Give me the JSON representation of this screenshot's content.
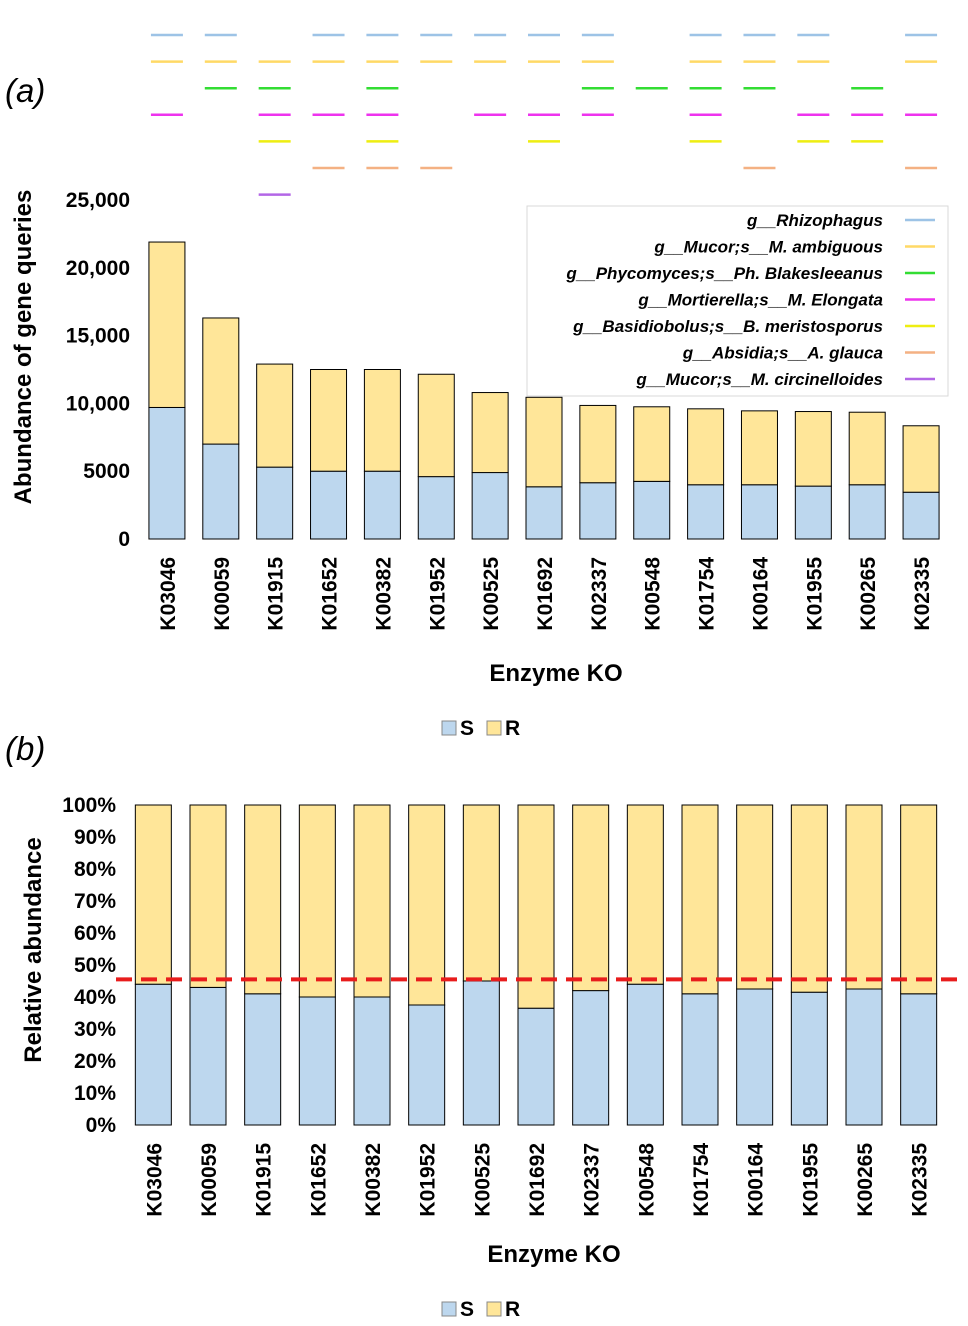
{
  "colors": {
    "S": "#bdd7ee",
    "R": "#ffe699",
    "bar_edge": "#000000",
    "threshold": "#e81c1c"
  },
  "panel_a_label": "(a)",
  "panel_b_label": "(b)",
  "chart_data": [
    {
      "type": "bar",
      "stacked": true,
      "panel": "(a)",
      "title": "",
      "xlabel": "Enzyme KO",
      "ylabel": "Abundance of gene queries",
      "ylim": [
        0,
        25000
      ],
      "yticks": [
        0,
        5000,
        10000,
        15000,
        20000,
        25000
      ],
      "ytick_labels": [
        "0",
        "5000",
        "10,000",
        "15,000",
        "20,000",
        "25,000"
      ],
      "categories": [
        "K03046",
        "K00059",
        "K01915",
        "K01652",
        "K00382",
        "K01952",
        "K00525",
        "K01692",
        "K02337",
        "K00548",
        "K01754",
        "K00164",
        "K01955",
        "K00265",
        "K02335"
      ],
      "series": [
        {
          "name": "S",
          "values": [
            9700,
            7000,
            5300,
            5000,
            5000,
            4600,
            4900,
            3850,
            4150,
            4250,
            4000,
            4000,
            3900,
            4000,
            3450
          ]
        },
        {
          "name": "R",
          "values": [
            12200,
            9300,
            7600,
            7500,
            7500,
            7550,
            5900,
            6600,
            5700,
            5500,
            5600,
            5450,
            5500,
            5350,
            4900
          ]
        }
      ],
      "legend": {
        "placement": "bottom",
        "entries": [
          "S",
          "R"
        ]
      },
      "taxa_legend": [
        {
          "label": "g__Rhizophagus",
          "color": "#9dc3e6"
        },
        {
          "label": "g__Mucor;s__M. ambiguous",
          "color": "#ffd966"
        },
        {
          "label": "g__Phycomyces;s__Ph. Blakesleeanus",
          "color": "#33dd33"
        },
        {
          "label": "g__Mortierella;s__M. Elongata",
          "color": "#ee33ee"
        },
        {
          "label": "g__Basidiobolus;s__B. meristosporus",
          "color": "#eeee11"
        },
        {
          "label": "g__Absidia;s__A. glauca",
          "color": "#f4b183"
        },
        {
          "label": "g__Mucor;s__M. circinelloides",
          "color": "#b366e6"
        }
      ],
      "taxa_presence": [
        [
          1,
          1,
          0,
          1,
          1,
          1,
          1,
          1,
          1,
          0,
          1,
          1,
          1,
          0,
          1
        ],
        [
          1,
          1,
          1,
          1,
          1,
          1,
          1,
          1,
          1,
          0,
          1,
          1,
          1,
          0,
          1
        ],
        [
          0,
          1,
          1,
          0,
          1,
          0,
          0,
          0,
          1,
          1,
          1,
          1,
          0,
          1,
          0
        ],
        [
          1,
          0,
          1,
          1,
          1,
          0,
          1,
          1,
          1,
          0,
          1,
          0,
          1,
          1,
          1
        ],
        [
          0,
          0,
          1,
          0,
          1,
          0,
          0,
          1,
          0,
          0,
          1,
          0,
          1,
          1,
          0
        ],
        [
          0,
          0,
          0,
          1,
          1,
          1,
          0,
          0,
          0,
          0,
          0,
          1,
          0,
          0,
          1
        ],
        [
          0,
          0,
          1,
          0,
          0,
          0,
          0,
          0,
          0,
          0,
          0,
          0,
          0,
          0,
          0
        ]
      ]
    },
    {
      "type": "bar",
      "stacked": true,
      "panel": "(b)",
      "title": "",
      "xlabel": "Enzyme KO",
      "ylabel": "Relative abundance",
      "ylim": [
        0,
        100
      ],
      "yticks": [
        0,
        10,
        20,
        30,
        40,
        50,
        60,
        70,
        80,
        90,
        100
      ],
      "ytick_labels": [
        "0%",
        "10%",
        "20%",
        "30%",
        "40%",
        "50%",
        "60%",
        "70%",
        "80%",
        "90%",
        "100%"
      ],
      "categories": [
        "K03046",
        "K00059",
        "K01915",
        "K01652",
        "K00382",
        "K01952",
        "K00525",
        "K01692",
        "K02337",
        "K00548",
        "K01754",
        "K00164",
        "K01955",
        "K00265",
        "K02335"
      ],
      "series": [
        {
          "name": "S",
          "values": [
            44,
            43,
            41,
            40,
            40,
            37.5,
            45,
            36.5,
            42,
            44,
            41,
            42.5,
            41.5,
            42.5,
            41
          ]
        },
        {
          "name": "R",
          "values": [
            56,
            57,
            59,
            60,
            60,
            62.5,
            55,
            63.5,
            58,
            56,
            59,
            57.5,
            58.5,
            57.5,
            59
          ]
        }
      ],
      "threshold_line": 45.5,
      "legend": {
        "placement": "bottom",
        "entries": [
          "S",
          "R"
        ]
      }
    }
  ]
}
